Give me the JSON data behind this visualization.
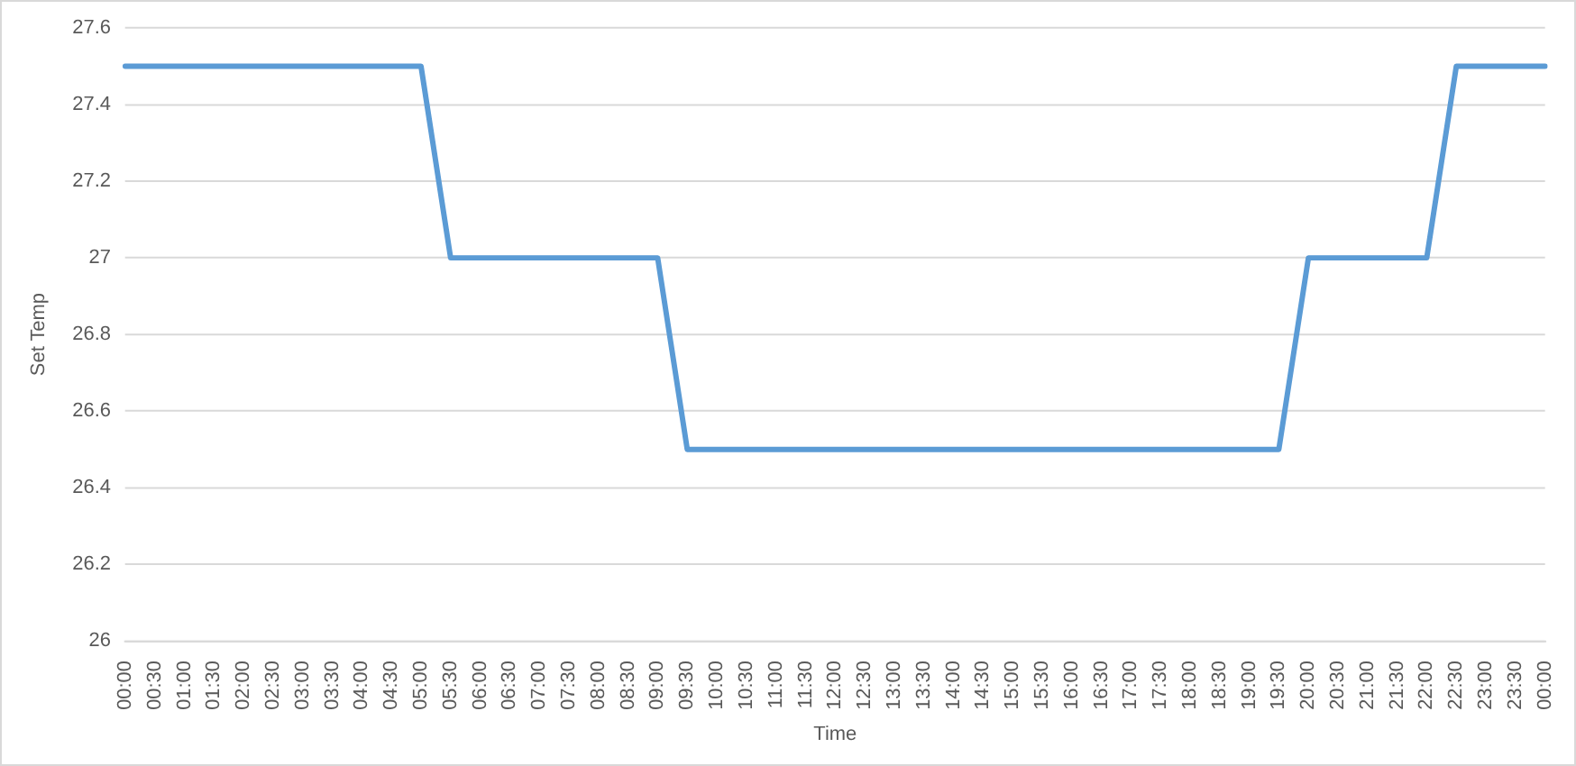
{
  "chart_data": {
    "type": "line",
    "xlabel": "Time",
    "ylabel": "Set Temp",
    "categories": [
      "00:00",
      "00:30",
      "01:00",
      "01:30",
      "02:00",
      "02:30",
      "03:00",
      "03:30",
      "04:00",
      "04:30",
      "05:00",
      "05:30",
      "06:00",
      "06:30",
      "07:00",
      "07:30",
      "08:00",
      "08:30",
      "09:00",
      "09:30",
      "10:00",
      "10:30",
      "11:00",
      "11:30",
      "12:00",
      "12:30",
      "13:00",
      "13:30",
      "14:00",
      "14:30",
      "15:00",
      "15:30",
      "16:00",
      "16:30",
      "17:00",
      "17:30",
      "18:00",
      "18:30",
      "19:00",
      "19:30",
      "20:00",
      "20:30",
      "21:00",
      "21:30",
      "22:00",
      "22:30",
      "23:00",
      "23:30",
      "00:00"
    ],
    "series": [
      {
        "color": "#5b9bd5",
        "values": [
          27.5,
          27.5,
          27.5,
          27.5,
          27.5,
          27.5,
          27.5,
          27.5,
          27.5,
          27.5,
          27.5,
          27,
          27,
          27,
          27,
          27,
          27,
          27,
          27,
          26.5,
          26.5,
          26.5,
          26.5,
          26.5,
          26.5,
          26.5,
          26.5,
          26.5,
          26.5,
          26.5,
          26.5,
          26.5,
          26.5,
          26.5,
          26.5,
          26.5,
          26.5,
          26.5,
          26.5,
          26.5,
          27,
          27,
          27,
          27,
          27,
          27.5,
          27.5,
          27.5,
          27.5
        ]
      }
    ],
    "ylim": [
      26,
      27.6
    ],
    "yticks": [
      26,
      26.2,
      26.4,
      26.6,
      26.8,
      27,
      27.2,
      27.4,
      27.6
    ],
    "grid": "y",
    "legend": false,
    "marker": "none",
    "line_style": "solid"
  }
}
